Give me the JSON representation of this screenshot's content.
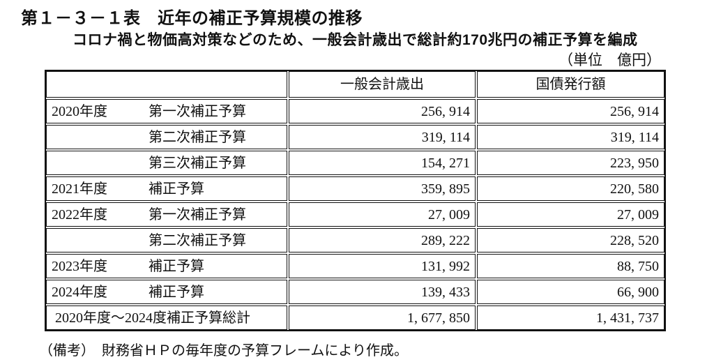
{
  "page": {
    "title": "第１－３－１表　近年の補正予算規模の推移",
    "subtitle": "コロナ禍と物価高対策などのため、一般会計歳出で総計約170兆円の補正予算を編成",
    "unit_note": "（単位　億円）",
    "footnote": "（備考）　財務省ＨＰの毎年度の予算フレームにより作成。"
  },
  "table": {
    "columns": [
      "",
      "一般会計歳出",
      "国債発行額"
    ],
    "rows": [
      {
        "year": "2020年度",
        "name": "第一次補正予算",
        "general_account": "256, 914",
        "bond_issuance": "256, 914"
      },
      {
        "year": "",
        "name": "第二次補正予算",
        "general_account": "319, 114",
        "bond_issuance": "319, 114"
      },
      {
        "year": "",
        "name": "第三次補正予算",
        "general_account": "154, 271",
        "bond_issuance": "223, 950"
      },
      {
        "year": "2021年度",
        "name": "補正予算",
        "general_account": "359, 895",
        "bond_issuance": "220, 580"
      },
      {
        "year": "2022年度",
        "name": "第一次補正予算",
        "general_account": "27, 009",
        "bond_issuance": "27, 009"
      },
      {
        "year": "",
        "name": "第二次補正予算",
        "general_account": "289, 222",
        "bond_issuance": "228, 520"
      },
      {
        "year": "2023年度",
        "name": "補正予算",
        "general_account": "131, 992",
        "bond_issuance": "88, 750"
      },
      {
        "year": "2024年度",
        "name": "補正予算",
        "general_account": "139, 433",
        "bond_issuance": "66, 900"
      },
      {
        "year": "",
        "name": "2020年度～2024度補正予算総計",
        "general_account": "1, 677, 850",
        "bond_issuance": "1, 431, 737"
      }
    ]
  }
}
